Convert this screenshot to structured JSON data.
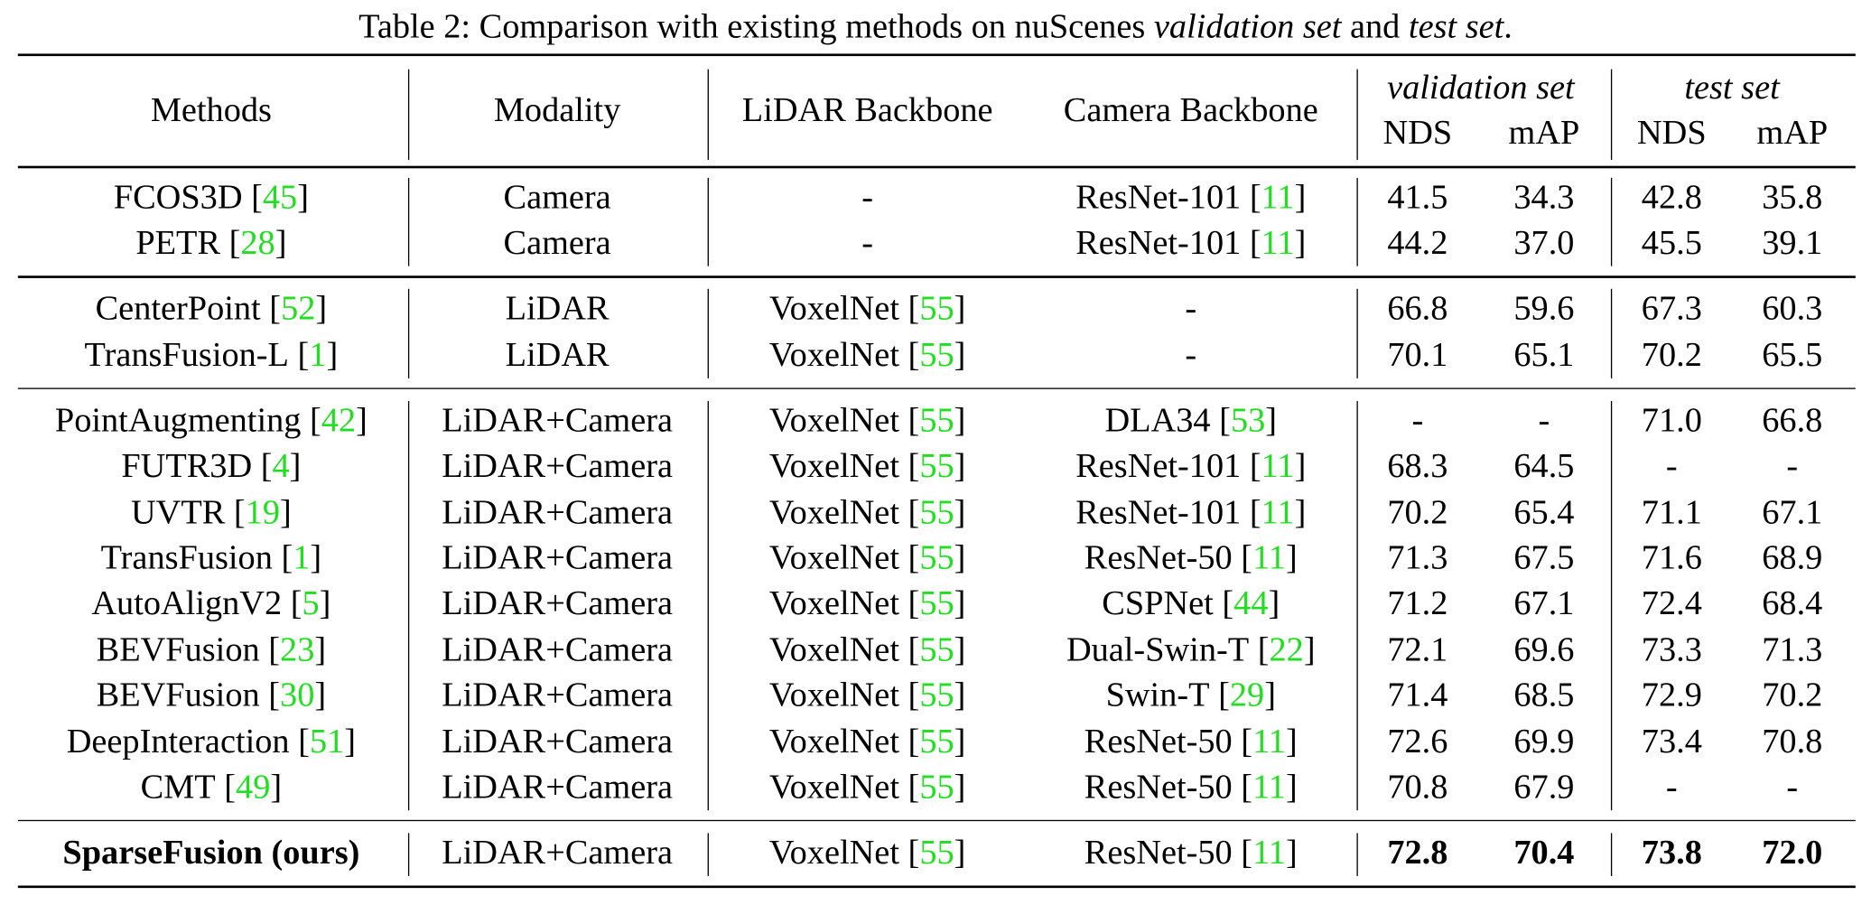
{
  "caption": [
    {
      "text": "Table 2: Comparison with existing methods on nuScenes "
    },
    {
      "text": "validation set",
      "italic": true
    },
    {
      "text": " and "
    },
    {
      "text": "test set",
      "italic": true
    },
    {
      "text": "."
    }
  ],
  "header": {
    "methods": "Methods",
    "modality": "Modality",
    "lidar_backbone": "LiDAR Backbone",
    "camera_backbone": "Camera Backbone",
    "validation_set": "validation set",
    "test_set": "test set",
    "metrics": [
      "NDS",
      "mAP",
      "NDS",
      "mAP"
    ]
  },
  "groups": [
    {
      "rows": [
        {
          "method": {
            "name": "FCOS3D",
            "ref": "45"
          },
          "modality": "Camera",
          "lidar_backbone": {
            "name": "-"
          },
          "camera_backbone": {
            "name": "ResNet-101",
            "ref": "11"
          },
          "scores": [
            "41.5",
            "34.3",
            "42.8",
            "35.8"
          ]
        },
        {
          "method": {
            "name": "PETR",
            "ref": "28"
          },
          "modality": "Camera",
          "lidar_backbone": {
            "name": "-"
          },
          "camera_backbone": {
            "name": "ResNet-101",
            "ref": "11"
          },
          "scores": [
            "44.2",
            "37.0",
            "45.5",
            "39.1"
          ]
        }
      ]
    },
    {
      "rows": [
        {
          "method": {
            "name": "CenterPoint",
            "ref": "52"
          },
          "modality": "LiDAR",
          "lidar_backbone": {
            "name": "VoxelNet",
            "ref": "55"
          },
          "camera_backbone": {
            "name": "-"
          },
          "scores": [
            "66.8",
            "59.6",
            "67.3",
            "60.3"
          ]
        },
        {
          "method": {
            "name": "TransFusion-L",
            "ref": "1"
          },
          "modality": "LiDAR",
          "lidar_backbone": {
            "name": "VoxelNet",
            "ref": "55"
          },
          "camera_backbone": {
            "name": "-"
          },
          "scores": [
            "70.1",
            "65.1",
            "70.2",
            "65.5"
          ]
        }
      ]
    },
    {
      "rows": [
        {
          "method": {
            "name": "PointAugmenting",
            "ref": "42"
          },
          "modality": "LiDAR+Camera",
          "lidar_backbone": {
            "name": "VoxelNet",
            "ref": "55"
          },
          "camera_backbone": {
            "name": "DLA34",
            "ref": "53"
          },
          "scores": [
            "-",
            "-",
            "71.0",
            "66.8"
          ]
        },
        {
          "method": {
            "name": "FUTR3D",
            "ref": "4"
          },
          "modality": "LiDAR+Camera",
          "lidar_backbone": {
            "name": "VoxelNet",
            "ref": "55"
          },
          "camera_backbone": {
            "name": "ResNet-101",
            "ref": "11"
          },
          "scores": [
            "68.3",
            "64.5",
            "-",
            "-"
          ]
        },
        {
          "method": {
            "name": "UVTR",
            "ref": "19"
          },
          "modality": "LiDAR+Camera",
          "lidar_backbone": {
            "name": "VoxelNet",
            "ref": "55"
          },
          "camera_backbone": {
            "name": "ResNet-101",
            "ref": "11"
          },
          "scores": [
            "70.2",
            "65.4",
            "71.1",
            "67.1"
          ]
        },
        {
          "method": {
            "name": "TransFusion",
            "ref": "1"
          },
          "modality": "LiDAR+Camera",
          "lidar_backbone": {
            "name": "VoxelNet",
            "ref": "55"
          },
          "camera_backbone": {
            "name": "ResNet-50",
            "ref": "11"
          },
          "scores": [
            "71.3",
            "67.5",
            "71.6",
            "68.9"
          ]
        },
        {
          "method": {
            "name": "AutoAlignV2",
            "ref": "5"
          },
          "modality": "LiDAR+Camera",
          "lidar_backbone": {
            "name": "VoxelNet",
            "ref": "55"
          },
          "camera_backbone": {
            "name": "CSPNet",
            "ref": "44"
          },
          "scores": [
            "71.2",
            "67.1",
            "72.4",
            "68.4"
          ]
        },
        {
          "method": {
            "name": "BEVFusion",
            "ref": "23"
          },
          "modality": "LiDAR+Camera",
          "lidar_backbone": {
            "name": "VoxelNet",
            "ref": "55"
          },
          "camera_backbone": {
            "name": "Dual-Swin-T",
            "ref": "22"
          },
          "scores": [
            "72.1",
            "69.6",
            "73.3",
            "71.3"
          ]
        },
        {
          "method": {
            "name": "BEVFusion",
            "ref": "30"
          },
          "modality": "LiDAR+Camera",
          "lidar_backbone": {
            "name": "VoxelNet",
            "ref": "55"
          },
          "camera_backbone": {
            "name": "Swin-T",
            "ref": "29"
          },
          "scores": [
            "71.4",
            "68.5",
            "72.9",
            "70.2"
          ]
        },
        {
          "method": {
            "name": "DeepInteraction",
            "ref": "51"
          },
          "modality": "LiDAR+Camera",
          "lidar_backbone": {
            "name": "VoxelNet",
            "ref": "55"
          },
          "camera_backbone": {
            "name": "ResNet-50",
            "ref": "11"
          },
          "scores": [
            "72.6",
            "69.9",
            "73.4",
            "70.8"
          ]
        },
        {
          "method": {
            "name": "CMT",
            "ref": "49"
          },
          "modality": "LiDAR+Camera",
          "lidar_backbone": {
            "name": "VoxelNet",
            "ref": "55"
          },
          "camera_backbone": {
            "name": "ResNet-50",
            "ref": "11"
          },
          "scores": [
            "70.8",
            "67.9",
            "-",
            "-"
          ]
        }
      ]
    },
    {
      "rows": [
        {
          "method": {
            "name": "SparseFusion (ours)"
          },
          "bold": true,
          "modality": "LiDAR+Camera",
          "lidar_backbone": {
            "name": "VoxelNet",
            "ref": "55"
          },
          "camera_backbone": {
            "name": "ResNet-50",
            "ref": "11"
          },
          "scores": [
            "72.8",
            "70.4",
            "73.8",
            "72.0"
          ]
        }
      ]
    }
  ]
}
